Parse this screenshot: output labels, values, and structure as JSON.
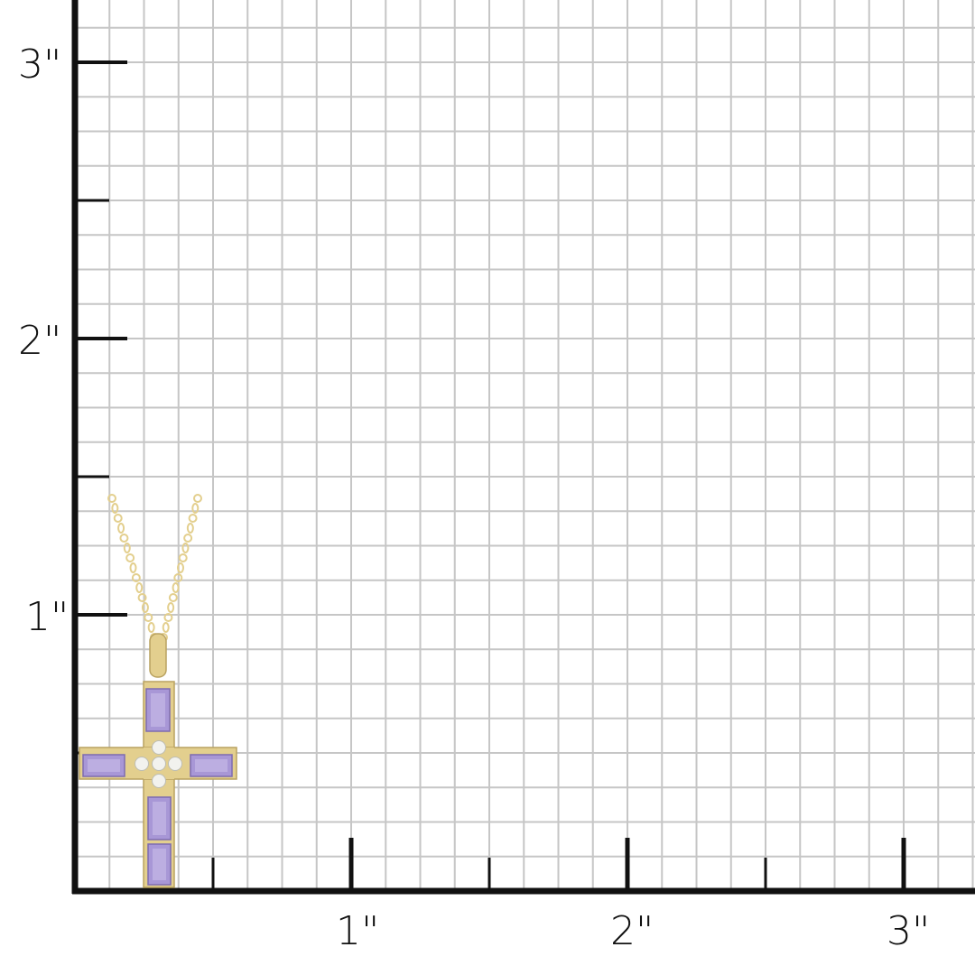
{
  "ruler": {
    "unit_symbol": "\"",
    "x_labels": [
      "1\"",
      "2\"",
      "3\""
    ],
    "y_labels": [
      "1\"",
      "2\"",
      "3\""
    ],
    "grid_divisions_per_inch": 8
  },
  "product": {
    "type": "cross pendant necklace",
    "metal_color": "#e3cf8e",
    "gem_color": "#a897d6",
    "accent_stone_color": "#f2f2ee",
    "height_inches": 0.75
  },
  "colors": {
    "grid": "#c6c6c6",
    "axis": "#111111",
    "background": "#ffffff"
  }
}
